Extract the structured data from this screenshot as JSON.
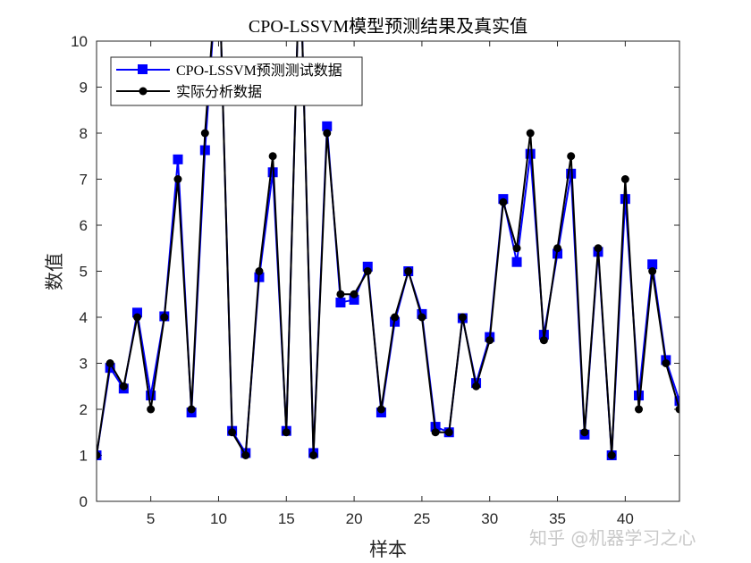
{
  "chart_data": {
    "type": "line",
    "title": "CPO-LSSVM模型预测结果及真实值",
    "xlabel": "样本",
    "ylabel": "数值",
    "xlim": [
      1,
      44
    ],
    "ylim": [
      0,
      10
    ],
    "xticks": [
      5,
      10,
      15,
      20,
      25,
      30,
      35,
      40
    ],
    "yticks": [
      0,
      1,
      2,
      3,
      4,
      5,
      6,
      7,
      8,
      9,
      10
    ],
    "grid": false,
    "legend_position": "top-left",
    "x": [
      1,
      2,
      3,
      4,
      5,
      6,
      7,
      8,
      9,
      10,
      11,
      12,
      13,
      14,
      15,
      16,
      17,
      18,
      19,
      20,
      21,
      22,
      23,
      24,
      25,
      26,
      27,
      28,
      29,
      30,
      31,
      32,
      33,
      34,
      35,
      36,
      37,
      38,
      39,
      40,
      41,
      42,
      43,
      44
    ],
    "series": [
      {
        "name": "CPO-LSSVM预测测试数据",
        "color": "#0000ff",
        "marker": "square",
        "values": [
          1,
          2.9,
          2.45,
          4.1,
          2.3,
          4.02,
          7.43,
          1.93,
          7.63,
          12,
          1.53,
          1.05,
          4.87,
          7.15,
          1.53,
          12,
          1.05,
          8.15,
          4.32,
          4.38,
          5.1,
          1.93,
          3.9,
          5,
          4.07,
          1.62,
          1.5,
          3.98,
          2.57,
          3.57,
          6.57,
          5.2,
          7.55,
          3.62,
          5.38,
          7.12,
          1.45,
          5.42,
          1,
          6.57,
          2.3,
          5.15,
          3.07,
          2.18
        ]
      },
      {
        "name": "实际分析数据",
        "color": "#000000",
        "marker": "circle",
        "values": [
          1,
          3,
          2.5,
          4,
          2,
          4,
          7,
          2,
          8,
          12,
          1.5,
          1,
          5,
          7.5,
          1.5,
          12,
          1,
          8,
          4.5,
          4.5,
          5,
          2,
          4,
          5,
          4,
          1.5,
          1.5,
          4,
          2.5,
          3.5,
          6.5,
          5.5,
          8,
          3.5,
          5.5,
          7.5,
          1.5,
          5.5,
          1,
          7,
          2,
          5,
          3,
          2
        ]
      }
    ]
  },
  "watermark": "知乎 @机器学习之心"
}
